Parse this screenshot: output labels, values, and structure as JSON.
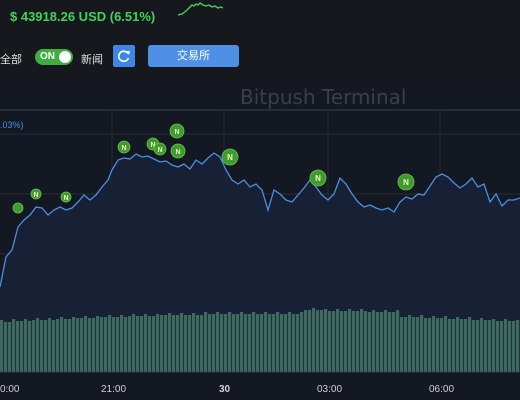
{
  "header": {
    "price_text": "$ 43918.26 USD (6.51%)",
    "price_color": "#3fd45a"
  },
  "controls": {
    "all_label": "全部",
    "toggle_label": "ON",
    "toggle_state": "on",
    "news_label": "新闻",
    "refresh_icon": "refresh-icon",
    "exchange_label": "交易所"
  },
  "chart": {
    "watermark": "Bitpush Terminal",
    "change_label": ".03%)",
    "news_marker_label": "N",
    "x_ticks": [
      "0:00",
      "21:00",
      "30",
      "03:00",
      "06:00"
    ],
    "line_color": "#4a90e2",
    "volume_color": "#3d6b5e"
  },
  "chart_data": {
    "type": "line",
    "x_ticks": [
      "0:00",
      "21:00",
      "30",
      "03:00",
      "06:00"
    ],
    "has_volume_bars": true,
    "has_news_markers": true
  }
}
